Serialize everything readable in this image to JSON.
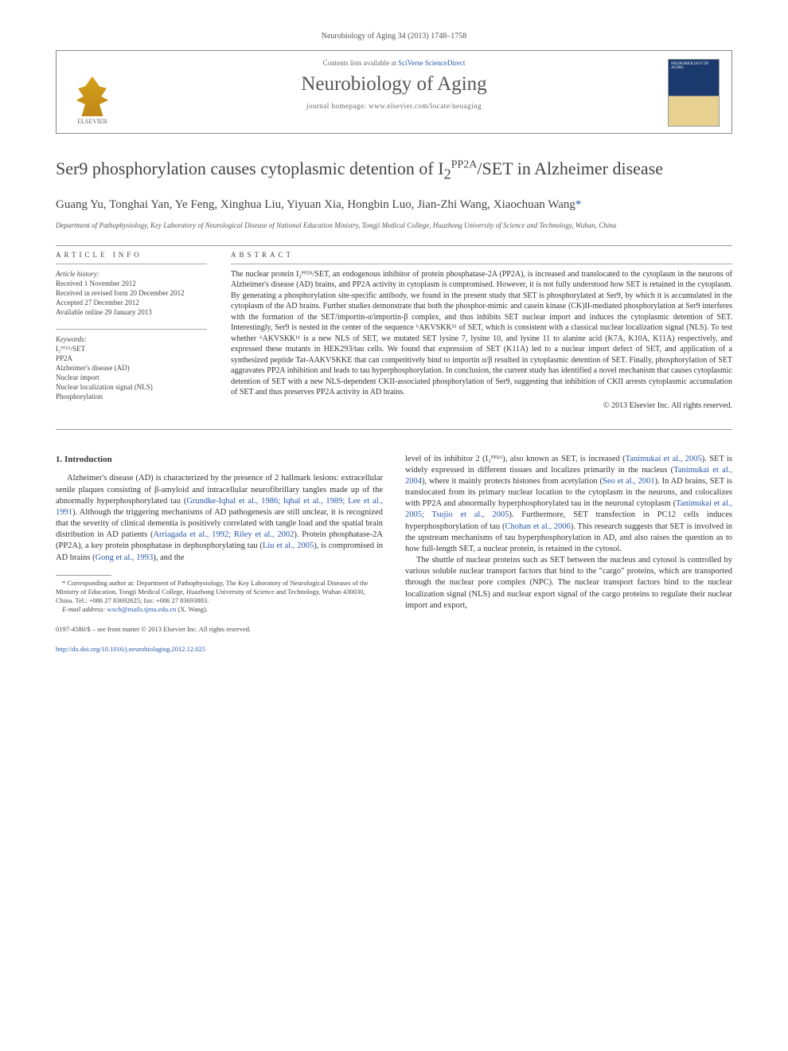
{
  "header": {
    "citation": "Neurobiology of Aging 34 (2013) 1748–1758",
    "contents_prefix": "Contents lists available at ",
    "contents_link": "SciVerse ScienceDirect",
    "journal_name": "Neurobiology of Aging",
    "homepage_prefix": "journal homepage: ",
    "homepage_url": "www.elsevier.com/locate/neuaging",
    "publisher": "ELSEVIER",
    "cover_label": "NEUROBIOLOGY OF AGING"
  },
  "article": {
    "title_pre": "Ser9 phosphorylation causes cytoplasmic detention of I",
    "title_sub": "2",
    "title_sup": "PP2A",
    "title_post": "/SET in Alzheimer disease",
    "authors": "Guang Yu, Tonghai Yan, Ye Feng, Xinghua Liu, Yiyuan Xia, Hongbin Luo, Jian-Zhi Wang, Xiaochuan Wang",
    "corr_mark": "*",
    "affiliation": "Department of Pathophysiology, Key Laboratory of Neurological Disease of National Education Ministry, Tongji Medical College, Huazhong University of Science and Technology, Wuhan, China"
  },
  "info": {
    "heading": "ARTICLE INFO",
    "history_label": "Article history:",
    "received": "Received 1 November 2012",
    "revised": "Received in revised form 20 December 2012",
    "accepted": "Accepted 27 December 2012",
    "online": "Available online 29 January 2013",
    "keywords_label": "Keywords:",
    "kw1": "I₂ᴾᴾ²ᴬ/SET",
    "kw2": "PP2A",
    "kw3": "Alzheimer's disease (AD)",
    "kw4": "Nuclear import",
    "kw5": "Nuclear localization signal (NLS)",
    "kw6": "Phosphorylation"
  },
  "abstract": {
    "heading": "ABSTRACT",
    "text": "The nuclear protein I₂ᴾᴾ²ᴬ/SET, an endogenous inhibitor of protein phosphatase-2A (PP2A), is increased and translocated to the cytoplasm in the neurons of Alzheimer's disease (AD) brains, and PP2A activity in cytoplasm is compromised. However, it is not fully understood how SET is retained in the cytoplasm. By generating a phosphorylation site-specific antibody, we found in the present study that SET is phosphorylated at Ser9, by which it is accumulated in the cytoplasm of the AD brains. Further studies demonstrate that both the phosphor-mimic and casein kinase (CK)II-mediated phosphorylation at Ser9 interferes with the formation of the SET/importin-α/importin-β complex, and thus inhibits SET nuclear import and induces the cytoplasmic detention of SET. Interestingly, Ser9 is nested in the center of the sequence ⁶AKVSKK¹¹ of SET, which is consistent with a classical nuclear localization signal (NLS). To test whether ⁶AKVSKK¹¹ is a new NLS of SET, we mutated SET lysine 7, lysine 10, and lysine 11 to alanine acid (K7A, K10A, K11A) respectively, and expressed these mutants in HEK293/tau cells. We found that expression of SET (K11A) led to a nuclear import defect of SET, and application of a synthesized peptide Tat-AAKVSKKE that can competitively bind to importin α/β resulted in cytoplasmic detention of SET. Finally, phosphorylation of SET aggravates PP2A inhibition and leads to tau hyperphosphorylation. In conclusion, the current study has identified a novel mechanism that causes cytoplasmic detention of SET with a new NLS-dependent CKII-associated phosphorylation of Ser9, suggesting that inhibition of CKII arrests cytoplasmic accumulation of SET and thus preserves PP2A activity in AD brains.",
    "copyright": "© 2013 Elsevier Inc. All rights reserved."
  },
  "body": {
    "section_num": "1.",
    "section_title": "Introduction",
    "col1_p1_a": "Alzheimer's disease (AD) is characterized by the presence of 2 hallmark lesions: extracellular senile plaques consisting of β-amyloid and intracellular neurofibrillary tangles made up of the abnormally hyperphosphorylated tau (",
    "col1_cite1": "Grundke-Iqbal et al., 1986; Iqbal et al., 1989; Lee et al., 1991",
    "col1_p1_b": "). Although the triggering mechanisms of AD pathogenesis are still unclear, it is recognized that the severity of clinical dementia is positively correlated with tangle load and the spatial brain distribution in AD patients (",
    "col1_cite2": "Arriagada et al., 1992; Riley et al., 2002",
    "col1_p1_c": "). Protein phosphatase-2A (PP2A), a key protein phosphatase in dephosphorylating tau (",
    "col1_cite3": "Liu et al., 2005",
    "col1_p1_d": "), is compromised in AD brains (",
    "col1_cite4": "Gong et al., 1993",
    "col1_p1_e": "), and the",
    "col2_p1_a": "level of its inhibitor 2 (I₂ᴾᴾ²ᴬ), also known as SET, is increased (",
    "col2_cite1": "Tanimukai et al., 2005",
    "col2_p1_b": "). SET is widely expressed in different tissues and localizes primarily in the nucleus (",
    "col2_cite2": "Tanimukai et al., 2004",
    "col2_p1_c": "), where it mainly protects histones from acetylation (",
    "col2_cite3": "Seo et al., 2001",
    "col2_p1_d": "). In AD brains, SET is translocated from its primary nuclear location to the cytoplasm in the neurons, and colocalizes with PP2A and abnormally hyperphosphorylated tau in the neuronal cytoplasm (",
    "col2_cite4": "Tanimukai et al., 2005; Tsujio et al., 2005",
    "col2_p1_e": "). Furthermore, SET transfection in PC12 cells induces hyperphosphorylation of tau (",
    "col2_cite5": "Chohan et al., 2006",
    "col2_p1_f": "). This research suggests that SET is involved in the upstream mechanisms of tau hyperphosphorylation in AD, and also raises the question as to how full-length SET, a nuclear protein, is retained in the cytosol.",
    "col2_p2": "The shuttle of nuclear proteins such as SET between the nucleus and cytosol is controlled by various soluble nuclear transport factors that bind to the \"cargo\" proteins, which are transported through the nuclear pore complex (NPC). The nuclear transport factors bind to the nuclear localization signal (NLS) and nuclear export signal of the cargo proteins to regulate their nuclear import and export,"
  },
  "footnote": {
    "corr_text": "* Corresponding author at: Department of Pathophysiology, The Key Laboratory of Neurological Diseases of the Ministry of Education, Tongji Medical College, Huazhong University of Science and Technology, Wuhan 430030, China. Tel.: +086 27 83692625; fax: +086 27 83693883.",
    "email_label": "E-mail address: ",
    "email": "wxch@mails.tjmu.edu.cn",
    "email_suffix": " (X. Wang)."
  },
  "footer": {
    "issn": "0197-4580/$ – see front matter © 2013 Elsevier Inc. All rights reserved.",
    "doi": "http://dx.doi.org/10.1016/j.neurobiolaging.2012.12.025"
  },
  "colors": {
    "link": "#2858a8",
    "text": "#333333",
    "muted": "#555555",
    "rule": "#999999"
  }
}
